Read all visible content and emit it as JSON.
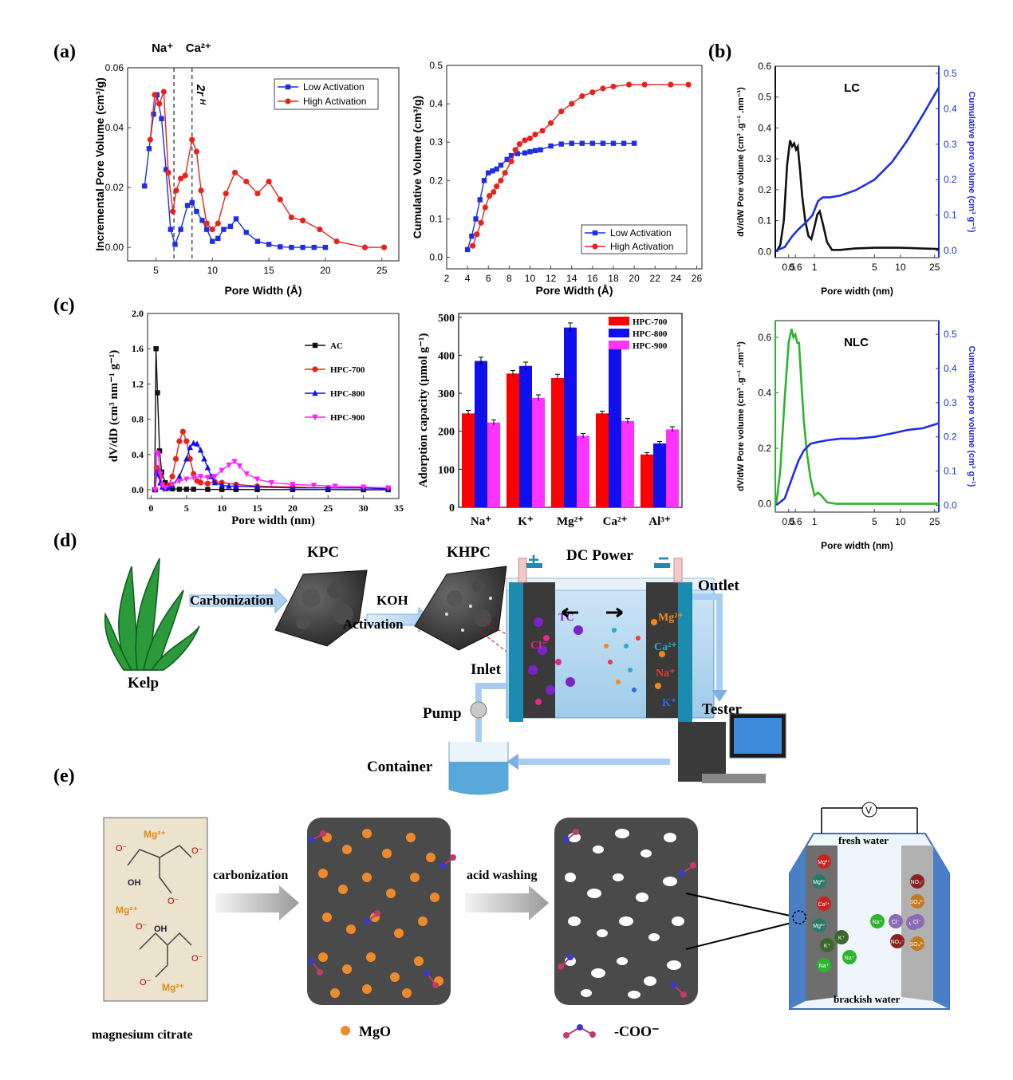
{
  "panel_labels": {
    "a": "(a)",
    "b": "(b)",
    "c": "(c)",
    "d": "(d)",
    "e": "(e)"
  },
  "colors": {
    "blue": "#1f2ee6",
    "red": "#e8231b",
    "magenta": "#ff22ff",
    "green": "#2db52d",
    "black": "#111111",
    "bar_red": "#ff0000",
    "bar_blue": "#1010ee",
    "bar_magenta": "#ff33ff"
  },
  "chart_data": [
    {
      "id": "a1",
      "type": "line",
      "xlabel": "Pore Width (Å)",
      "ylabel": "Incremental Pore Volume  (cm³/g)",
      "xlim": [
        2.5,
        26.5
      ],
      "ylim": [
        -0.0045,
        0.06
      ],
      "xticks": [
        5,
        10,
        15,
        20,
        25
      ],
      "yticks": [
        0.0,
        0.02,
        0.04,
        0.06
      ],
      "ytick_labels": [
        "0.00",
        "0.02",
        "0.04",
        "0.06"
      ],
      "annotations": {
        "na": "Na⁺",
        "ca": "Ca²⁺",
        "twor": "2r",
        "twor_sub": "H"
      },
      "vlines": [
        6.6,
        8.2
      ],
      "legend": [
        "Low Activation",
        "High Activation"
      ],
      "series": [
        {
          "name": "Low Activation",
          "color": "#1f2ee6",
          "marker": "square",
          "x": [
            4.0,
            4.4,
            4.8,
            5.1,
            5.5,
            5.9,
            6.3,
            6.7,
            7.2,
            7.8,
            8.2,
            8.6,
            9.1,
            9.5,
            10.0,
            10.5,
            11.0,
            11.6,
            12.1,
            13.0,
            14.0,
            15.0,
            16.0,
            17.0,
            18.0,
            19.0,
            20.0
          ],
          "y": [
            0.0205,
            0.033,
            0.0445,
            0.051,
            0.043,
            0.026,
            0.006,
            0.001,
            0.006,
            0.014,
            0.015,
            0.012,
            0.009,
            0.006,
            0.002,
            0.003,
            0.006,
            0.007,
            0.0095,
            0.005,
            0.002,
            0.001,
            0.0002,
            0.0,
            0.0,
            0.0,
            0.0
          ]
        },
        {
          "name": "High Activation",
          "color": "#e8231b",
          "marker": "circle",
          "x": [
            4.5,
            4.9,
            5.3,
            5.7,
            6.1,
            6.5,
            6.8,
            7.2,
            7.6,
            8.2,
            8.6,
            9.0,
            9.5,
            10.0,
            10.5,
            11.2,
            12.0,
            13.0,
            14.0,
            15.0,
            16.0,
            17.0,
            18.0,
            19.5,
            21.0,
            23.5,
            25.2
          ],
          "y": [
            0.036,
            0.051,
            0.048,
            0.052,
            0.025,
            0.012,
            0.019,
            0.023,
            0.024,
            0.036,
            0.032,
            0.019,
            0.008,
            0.006,
            0.008,
            0.018,
            0.025,
            0.022,
            0.018,
            0.022,
            0.016,
            0.01,
            0.009,
            0.006,
            0.002,
            0.0,
            0.0
          ]
        }
      ]
    },
    {
      "id": "a2",
      "type": "line",
      "xlabel": "Pore Width (Å)",
      "ylabel": "Cumulative Volume (cm³/g)",
      "xlim": [
        2,
        26.5
      ],
      "ylim": [
        -0.03,
        0.5
      ],
      "xticks": [
        2,
        4,
        6,
        8,
        10,
        12,
        14,
        16,
        18,
        20,
        22,
        24,
        26
      ],
      "yticks": [
        0.0,
        0.1,
        0.2,
        0.3,
        0.4,
        0.5
      ],
      "ytick_labels": [
        "0.0",
        "0.1",
        "0.2",
        "0.3",
        "0.4",
        "0.5"
      ],
      "legend": [
        "Low Activation",
        "High Activation"
      ],
      "series": [
        {
          "name": "Low Activation",
          "color": "#1f2ee6",
          "marker": "square",
          "x": [
            4.0,
            4.4,
            4.8,
            5.2,
            5.6,
            6.0,
            6.4,
            6.8,
            7.2,
            7.8,
            8.2,
            8.8,
            9.5,
            10.0,
            10.5,
            11.0,
            12.0,
            13.0,
            14.0,
            15.0,
            16.0,
            17.0,
            18.0,
            19.0,
            20.0
          ],
          "y": [
            0.02,
            0.055,
            0.1,
            0.15,
            0.2,
            0.22,
            0.225,
            0.23,
            0.24,
            0.255,
            0.265,
            0.27,
            0.272,
            0.275,
            0.278,
            0.28,
            0.29,
            0.295,
            0.297,
            0.297,
            0.297,
            0.297,
            0.297,
            0.297,
            0.297
          ]
        },
        {
          "name": "High Activation",
          "color": "#e8231b",
          "marker": "circle",
          "x": [
            4.5,
            4.9,
            5.3,
            5.7,
            6.1,
            6.5,
            6.8,
            7.2,
            7.6,
            8.2,
            8.6,
            9.0,
            9.5,
            10.0,
            10.5,
            11.2,
            12.0,
            13.0,
            14.0,
            15.0,
            16.0,
            17.0,
            18.0,
            19.5,
            21.0,
            23.5,
            25.2
          ],
          "y": [
            0.03,
            0.06,
            0.09,
            0.13,
            0.16,
            0.17,
            0.185,
            0.2,
            0.22,
            0.25,
            0.28,
            0.295,
            0.305,
            0.31,
            0.32,
            0.33,
            0.35,
            0.38,
            0.4,
            0.42,
            0.43,
            0.44,
            0.445,
            0.45,
            0.45,
            0.45,
            0.45
          ]
        }
      ]
    },
    {
      "id": "b1",
      "type": "line",
      "title": "LC",
      "xlabel": "Pore width (nm)",
      "ylabel": "dV/dW Pore volume (cm³ .g⁻¹ .nm⁻¹)",
      "y2label": "Cumulative pore volume (cm³ g⁻¹)",
      "xscale": "log",
      "xlim": [
        0.35,
        28
      ],
      "ylim": [
        -0.02,
        0.6
      ],
      "y2lim": [
        -0.02,
        0.52
      ],
      "xticks": [
        0.5,
        0.6,
        1,
        5,
        10,
        25
      ],
      "xtick_labels": [
        "0.5",
        "0.6",
        "1",
        "5",
        "10",
        "25"
      ],
      "yticks": [
        0.0,
        0.1,
        0.2,
        0.3,
        0.4,
        0.5,
        0.6
      ],
      "ytick_labels": [
        "0.0",
        "0.1",
        "0.2",
        "0.3",
        "0.4",
        "0.5",
        "0.6"
      ],
      "y2ticks": [
        0.0,
        0.1,
        0.2,
        0.3,
        0.4,
        0.5
      ],
      "y2tick_labels": [
        "0.0",
        "0.1",
        "0.2",
        "0.3",
        "0.4",
        "0.5"
      ],
      "series": [
        {
          "name": "dV/dW",
          "color": "#111111",
          "axis": "left",
          "x": [
            0.36,
            0.4,
            0.44,
            0.48,
            0.52,
            0.55,
            0.58,
            0.61,
            0.64,
            0.68,
            0.72,
            0.78,
            0.85,
            0.92,
            1.0,
            1.08,
            1.15,
            1.25,
            1.4,
            1.6,
            2.0,
            3,
            5,
            10,
            28
          ],
          "y": [
            0.0,
            0.02,
            0.1,
            0.28,
            0.36,
            0.34,
            0.35,
            0.33,
            0.34,
            0.26,
            0.18,
            0.1,
            0.05,
            0.04,
            0.08,
            0.12,
            0.13,
            0.09,
            0.03,
            0.005,
            0.005,
            0.01,
            0.012,
            0.012,
            0.008
          ]
        },
        {
          "name": "Cumulative",
          "color": "#1f2ee6",
          "axis": "right",
          "x": [
            0.36,
            0.45,
            0.55,
            0.65,
            0.8,
            0.95,
            1.1,
            1.25,
            1.5,
            2,
            3,
            5,
            8,
            12,
            18,
            28
          ],
          "y": [
            0.0,
            0.01,
            0.04,
            0.06,
            0.08,
            0.1,
            0.14,
            0.15,
            0.15,
            0.155,
            0.17,
            0.2,
            0.25,
            0.31,
            0.38,
            0.46
          ]
        }
      ]
    },
    {
      "id": "b2",
      "type": "line",
      "title": "NLC",
      "xlabel": "Pore width (nm)",
      "ylabel": "dV/dW Pore volume (cm³ .g⁻¹ .nm⁻¹)",
      "y2label": "Cumulative pore volume (cm³ g⁻¹)",
      "xscale": "log",
      "xlim": [
        0.35,
        28
      ],
      "ylim": [
        -0.03,
        0.66
      ],
      "y2lim": [
        -0.02,
        0.54
      ],
      "xticks": [
        0.5,
        0.6,
        1,
        5,
        10,
        25
      ],
      "xtick_labels": [
        "0.5",
        "0.6",
        "1",
        "5",
        "10",
        "25"
      ],
      "yticks": [
        0.0,
        0.2,
        0.4,
        0.6
      ],
      "ytick_labels": [
        "0.0",
        "0.2",
        "0.4",
        "0.6"
      ],
      "y2ticks": [
        0.0,
        0.1,
        0.2,
        0.3,
        0.4,
        0.5
      ],
      "y2tick_labels": [
        "0.0",
        "0.1",
        "0.2",
        "0.3",
        "0.4",
        "0.5"
      ],
      "series": [
        {
          "name": "dV/dW",
          "color": "#2db52d",
          "axis": "left",
          "x": [
            0.36,
            0.4,
            0.45,
            0.5,
            0.54,
            0.57,
            0.6,
            0.63,
            0.66,
            0.7,
            0.75,
            0.82,
            0.9,
            1.0,
            1.1,
            1.2,
            1.4,
            1.8,
            3,
            10,
            28
          ],
          "y": [
            0.0,
            0.12,
            0.38,
            0.58,
            0.63,
            0.6,
            0.61,
            0.58,
            0.58,
            0.45,
            0.3,
            0.18,
            0.09,
            0.03,
            0.04,
            0.03,
            0.005,
            0.0,
            0.0,
            0.0,
            0.0
          ]
        },
        {
          "name": "Cumulative",
          "color": "#1f2ee6",
          "axis": "right",
          "x": [
            0.36,
            0.45,
            0.55,
            0.65,
            0.75,
            0.9,
            1.1,
            1.4,
            2,
            3,
            5,
            8,
            12,
            18,
            28
          ],
          "y": [
            0.0,
            0.02,
            0.08,
            0.13,
            0.16,
            0.18,
            0.185,
            0.19,
            0.195,
            0.195,
            0.2,
            0.21,
            0.22,
            0.225,
            0.24
          ]
        }
      ]
    },
    {
      "id": "c1",
      "type": "line",
      "xlabel": "Pore width (nm)",
      "ylabel": "dV/dD (cm³ nm⁻¹ g⁻¹)",
      "xlim": [
        -0.5,
        35
      ],
      "ylim": [
        -0.1,
        2.0
      ],
      "xticks": [
        0,
        5,
        10,
        15,
        20,
        25,
        30,
        35
      ],
      "yticks": [
        0.0,
        0.4,
        0.8,
        1.2,
        1.6,
        2.0
      ],
      "ytick_labels": [
        "0.0",
        "0.4",
        "0.8",
        "1.2",
        "1.6",
        "2.0"
      ],
      "legend": [
        "AC",
        "HPC-700",
        "HPC-800",
        "HPC-900"
      ],
      "series": [
        {
          "name": "AC",
          "color": "#111111",
          "marker": "square",
          "x": [
            0.5,
            0.7,
            0.9,
            1.2,
            1.5,
            2.0,
            2.5,
            3,
            4,
            5,
            6,
            8,
            10,
            12,
            15,
            20,
            25,
            30,
            33.5
          ],
          "y": [
            0.0,
            1.6,
            1.1,
            0.44,
            0.2,
            0.08,
            0.03,
            0.01,
            0.005,
            0.005,
            0.005,
            0.003,
            0.002,
            0.002,
            0.001,
            0.001,
            0.001,
            0.0,
            0.0
          ]
        },
        {
          "name": "HPC-700",
          "color": "#e8231b",
          "marker": "circle",
          "x": [
            0.6,
            0.8,
            1.0,
            1.3,
            1.6,
            2.0,
            2.5,
            3.0,
            3.5,
            4.0,
            4.5,
            5.0,
            5.5,
            6.0,
            6.5,
            7.0,
            8.0,
            9.0,
            10,
            12,
            15,
            20,
            25,
            30,
            33.5
          ],
          "y": [
            0.0,
            0.25,
            0.22,
            0.15,
            0.06,
            0.02,
            0.05,
            0.15,
            0.35,
            0.55,
            0.66,
            0.55,
            0.35,
            0.18,
            0.1,
            0.08,
            0.07,
            0.09,
            0.08,
            0.06,
            0.04,
            0.03,
            0.02,
            0.02,
            0.01
          ]
        },
        {
          "name": "HPC-800",
          "color": "#1010ee",
          "marker": "triangle",
          "x": [
            0.6,
            0.8,
            1.0,
            1.3,
            1.6,
            2.0,
            2.5,
            3.0,
            4.0,
            5.0,
            5.5,
            6.0,
            6.5,
            7.0,
            7.5,
            8.0,
            8.5,
            9.0,
            10,
            11,
            12,
            15,
            20,
            25,
            30,
            33.5
          ],
          "y": [
            0.0,
            0.2,
            0.18,
            0.08,
            0.03,
            0.01,
            0.02,
            0.05,
            0.15,
            0.35,
            0.48,
            0.53,
            0.52,
            0.45,
            0.35,
            0.25,
            0.15,
            0.08,
            0.05,
            0.04,
            0.04,
            0.03,
            0.02,
            0.02,
            0.02,
            0.01
          ]
        },
        {
          "name": "HPC-900",
          "color": "#ff22ff",
          "marker": "tri-down",
          "x": [
            0.6,
            0.8,
            1.0,
            1.3,
            1.6,
            2.0,
            3.0,
            4.0,
            5.0,
            6.0,
            7.0,
            8.0,
            9.0,
            10.0,
            11.0,
            11.8,
            12.5,
            13.5,
            15,
            17,
            20,
            23,
            26,
            30,
            33.5
          ],
          "y": [
            0.0,
            0.42,
            0.4,
            0.18,
            0.05,
            0.02,
            0.06,
            0.1,
            0.12,
            0.14,
            0.15,
            0.14,
            0.15,
            0.22,
            0.28,
            0.32,
            0.27,
            0.18,
            0.12,
            0.08,
            0.06,
            0.05,
            0.04,
            0.03,
            0.02
          ]
        }
      ]
    },
    {
      "id": "c2",
      "type": "bar",
      "ylabel": "Adorption capacity (μmol g⁻¹)",
      "ylim": [
        0,
        510
      ],
      "yticks": [
        0,
        100,
        200,
        300,
        400,
        500
      ],
      "ytick_labels": [
        "0",
        "100",
        "200",
        "300",
        "400",
        "500"
      ],
      "categories": [
        "Na⁺",
        "K⁺",
        "Mg²⁺",
        "Ca²⁺",
        "Al³⁺"
      ],
      "legend": [
        "HPC-700",
        "HPC-800",
        "HPC-900"
      ],
      "series": [
        {
          "name": "HPC-700",
          "color": "#ff0000",
          "values": [
            247,
            352,
            340,
            247,
            139
          ],
          "errors": [
            8,
            8,
            10,
            6,
            5
          ]
        },
        {
          "name": "HPC-800",
          "color": "#1010ee",
          "values": [
            385,
            372,
            473,
            425,
            168
          ],
          "errors": [
            10,
            10,
            12,
            12,
            5
          ]
        },
        {
          "name": "HPC-900",
          "color": "#ff33ff",
          "values": [
            223,
            288,
            188,
            227,
            205
          ],
          "errors": [
            7,
            8,
            6,
            7,
            7
          ]
        }
      ]
    }
  ],
  "panel_d": {
    "kelp": "Kelp",
    "carbonization": "Carbonization",
    "kpc": "KPC",
    "koh": "KOH",
    "activation": "Activation",
    "khpc": "KHPC",
    "dc_power": "DC Power",
    "outlet": "Outlet",
    "inlet": "Inlet",
    "pump": "Pump",
    "tester": "Tester",
    "container": "Container",
    "ion_tc": "TC",
    "ion_cl": "Cl⁻",
    "ion_mg": "Mg²⁺",
    "ion_ca": "Ca²⁺",
    "ion_na": "Na⁺",
    "ion_k": "K⁺",
    "plus": "+",
    "minus": "−"
  },
  "panel_e": {
    "magnesium_citrate": "magnesium  citrate",
    "carbonization": "carbonization",
    "acid_washing": "acid washing",
    "mgo": "MgO",
    "coo": "-COO⁻",
    "fresh_water": "fresh water",
    "brackish_water": "brackish water",
    "voltmeter": "V",
    "mg2": "Mg²⁺",
    "o_minus": "O⁻",
    "oh": "OH",
    "ions_left": [
      "Mg²⁺",
      "Mg²⁺",
      "Ca²⁺",
      "Mg²⁺",
      "K⁺",
      "Na⁺",
      "K⁺",
      "Na⁺"
    ],
    "ions_mid": [
      "Na⁺",
      "Cl⁻",
      "Cl⁻",
      "NO₃⁻"
    ],
    "ions_right": [
      "NO₃⁻",
      "SO₄²⁻",
      "Cl⁻",
      "SO₄²⁻"
    ]
  }
}
